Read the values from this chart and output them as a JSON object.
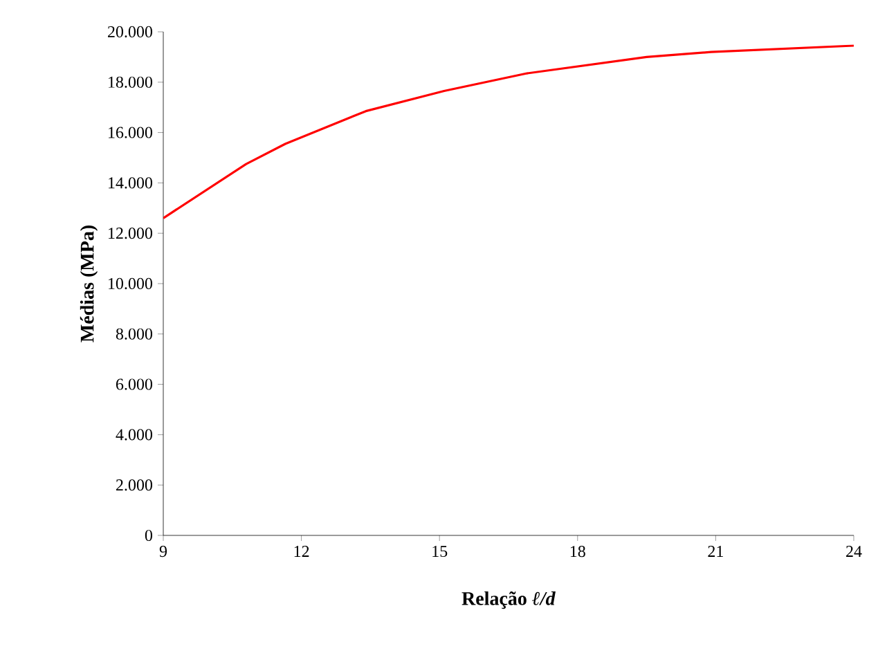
{
  "chart_data": {
    "type": "line",
    "xlabel": "Relação *ℓ/d*",
    "ylabel": "Médias (MPa)",
    "x": [
      9,
      10.8,
      11.65,
      13.4,
      15.1,
      16.9,
      19.5,
      20.9,
      24
    ],
    "series": [
      {
        "color": "#ff0000",
        "values": [
          12600,
          14750,
          15550,
          16850,
          17650,
          18350,
          19000,
          19200,
          19450
        ]
      }
    ],
    "xlim": [
      9,
      24
    ],
    "xticks": [
      9,
      12,
      15,
      18,
      21,
      24
    ],
    "ylim": [
      0,
      20000
    ],
    "yticks": [
      0,
      {
        "value": 2000,
        "label": "2.000"
      },
      {
        "value": 4000,
        "label": "4.000"
      },
      {
        "value": 6000,
        "label": "6.000"
      },
      {
        "value": 8000,
        "label": "8.000"
      },
      {
        "value": 10000,
        "label": "10.000"
      },
      {
        "value": 12000,
        "label": "12.000"
      },
      {
        "value": 14000,
        "label": "14.000"
      },
      {
        "value": 16000,
        "label": "16.000"
      },
      {
        "value": 18000,
        "label": "18.000"
      },
      {
        "value": 20000,
        "label": "20.000"
      }
    ],
    "marker": "none",
    "line_style": "solid"
  }
}
